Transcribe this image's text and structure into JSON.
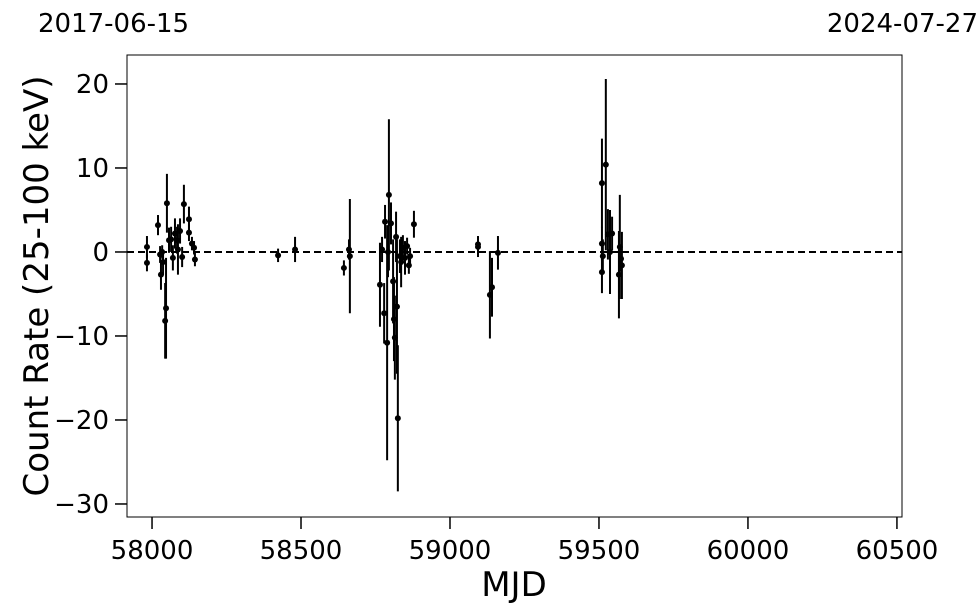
{
  "chart_data": {
    "type": "errorbar",
    "xlabel": "MJD",
    "ylabel": "Count Rate (25-100 keV)",
    "top_axis_labels": [
      "2017-06-15",
      "2024-07-27"
    ],
    "xlim": [
      57916,
      60517
    ],
    "ylim": [
      -31.55,
      23.45
    ],
    "xticks": [
      58000,
      58500,
      59000,
      59500,
      60000,
      60500
    ],
    "yticks": [
      {
        "value": -30,
        "label": "−30"
      },
      {
        "value": -20,
        "label": "−20"
      },
      {
        "value": -10,
        "label": "−10"
      },
      0,
      10,
      20
    ],
    "hline": 0,
    "color": "#000000",
    "series": [
      {
        "x": [
          57983,
          57983,
          58020,
          58027,
          58030,
          58037,
          58044,
          58047,
          58050,
          58057,
          58064,
          58070,
          58077,
          58087,
          58094,
          58101,
          58107,
          58124,
          58124,
          58134,
          58141,
          58144,
          58034,
          58084,
          58423,
          58480,
          58644,
          58661,
          58664,
          58765,
          58772,
          58779,
          58782,
          58789,
          58795,
          58802,
          58809,
          58812,
          58815,
          58819,
          58822,
          58825,
          58832,
          58842,
          58849,
          58856,
          58862,
          58866,
          58879,
          58792,
          58836,
          59094,
          59094,
          59134,
          59141,
          59161,
          59510,
          59510,
          59510,
          59513,
          59523,
          59530,
          59537,
          59544,
          59567,
          59570,
          59577,
          59574
        ],
        "y": [
          0.6,
          -1.3,
          3.2,
          -0.3,
          -2.7,
          -1.2,
          -8.2,
          -6.7,
          5.8,
          1.4,
          1.5,
          -0.7,
          2.2,
          0.3,
          2.5,
          -0.6,
          5.7,
          3.9,
          2.3,
          1.0,
          0.5,
          -0.9,
          0,
          1.4,
          -0.4,
          0.3,
          -1.9,
          0.3,
          -0.5,
          -3.9,
          0.3,
          -7.3,
          3.6,
          -10.8,
          6.8,
          3.4,
          -3.5,
          -8.0,
          -10.2,
          1.8,
          -6.5,
          -19.8,
          -0.5,
          0.5,
          -0.7,
          0.7,
          -1.6,
          -0.5,
          3.3,
          0,
          -1.2,
          0.6,
          0.9,
          -5.1,
          -4.2,
          -0.1,
          8.2,
          1.0,
          -2.4,
          -0.5,
          10.4,
          2.1,
          0.0,
          2.2,
          -2.7,
          0.6,
          -1.6,
          -0.8
        ],
        "yerr": [
          1.3,
          1,
          1.2,
          1,
          1.8,
          1.5,
          4.5,
          6,
          3.5,
          1.5,
          1.5,
          1.5,
          1.8,
          3,
          1.5,
          1.2,
          2.3,
          1.5,
          1,
          0.8,
          0.8,
          0.8,
          0.8,
          1.6,
          0.8,
          1.5,
          0.9,
          1.2,
          6.8,
          5,
          1.5,
          3.6,
          2,
          14,
          9,
          2.5,
          5,
          5,
          5,
          3,
          8,
          8.7,
          2,
          1.5,
          2,
          1,
          1,
          1,
          1.6,
          3,
          3,
          1.2,
          1,
          5.2,
          3.5,
          2,
          5.3,
          2,
          2.5,
          2,
          10.2,
          3,
          5,
          2,
          5.2,
          6.2,
          4,
          1.5
        ]
      }
    ]
  }
}
